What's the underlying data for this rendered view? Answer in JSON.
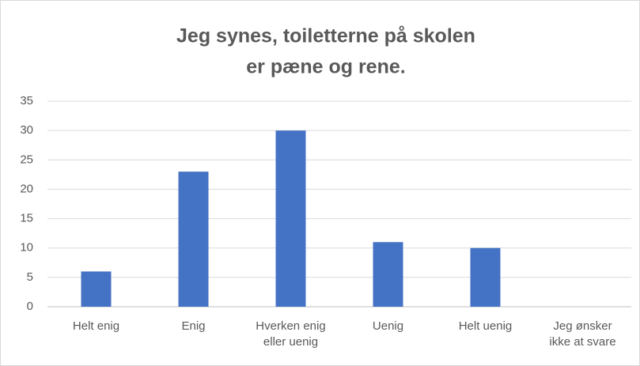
{
  "chart_data": {
    "type": "bar",
    "title": [
      "Jeg synes, toiletterne på skolen",
      "er pæne og rene."
    ],
    "categories": [
      "Helt enig",
      "Enig",
      "Hverken enig eller uenig",
      "Uenig",
      "Helt uenig",
      "Jeg ønsker ikke at svare"
    ],
    "values": [
      6,
      23,
      30,
      11,
      10,
      0
    ],
    "color": "#4472c4",
    "ylim": [
      0,
      35
    ],
    "yticks": [
      0,
      5,
      10,
      15,
      20,
      25,
      30,
      35
    ],
    "grid": true
  }
}
